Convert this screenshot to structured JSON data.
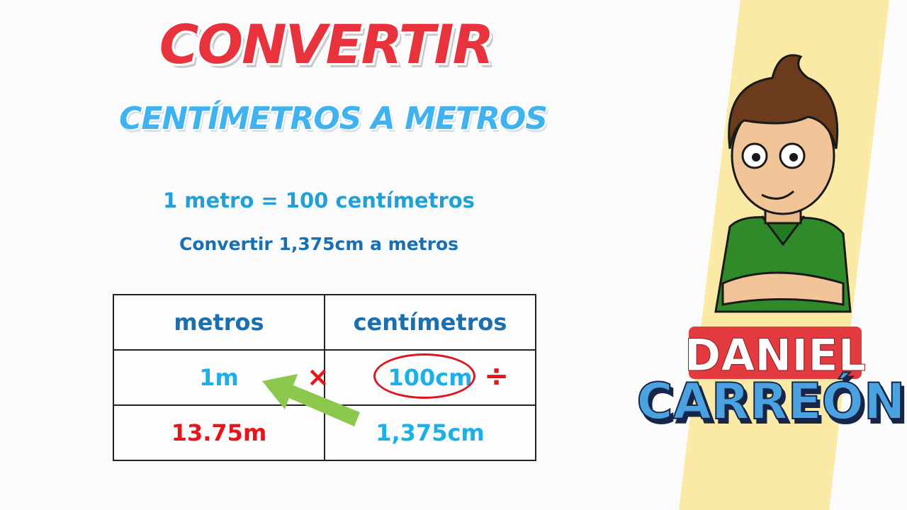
{
  "title": "CONVERTIR",
  "subtitle": "CENTÍMETROS A METROS",
  "equivalence": "1 metro = 100 centímetros",
  "problem": "Convertir 1,375cm a metros",
  "table": {
    "headers": [
      "metros",
      "centímetros"
    ],
    "rows": [
      [
        "1m",
        "100cm"
      ],
      [
        "13.75m",
        "1,375cm"
      ]
    ]
  },
  "operators": {
    "multiply": "×",
    "divide": "÷"
  },
  "logo": {
    "line1": "DANIEL",
    "line2": "CARREÓN"
  },
  "colors": {
    "title_red": "#e8323c",
    "subtitle_blue": "#3fb2f0",
    "dark_blue": "#1a6fb0",
    "light_blue": "#1ab0e8",
    "answer_red": "#e8141c",
    "arrow_green": "#8cc84b",
    "stripe_yellow": "#fbe9a6"
  }
}
